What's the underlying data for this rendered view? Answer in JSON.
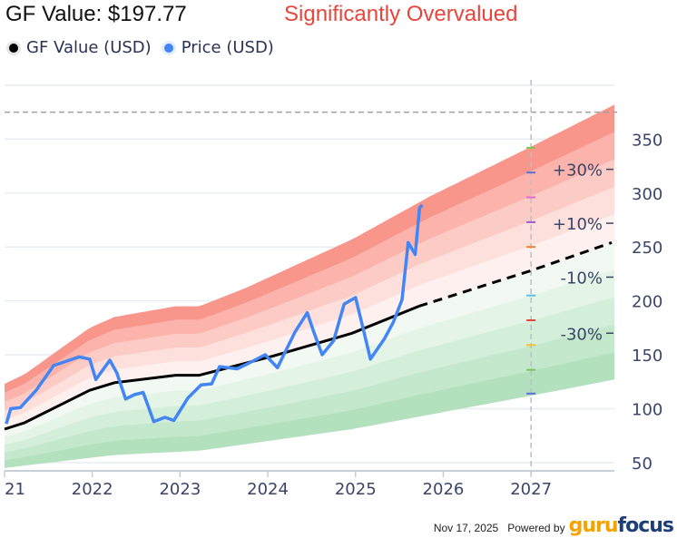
{
  "header": {
    "title": "GF Value: $197.77",
    "verdict": "Significantly Overvalued",
    "verdict_color": "#e8453c"
  },
  "legend": [
    {
      "label": "GF Value (USD)",
      "color": "#000000"
    },
    {
      "label": "Price (USD)",
      "color": "#4285f4"
    }
  ],
  "footer": {
    "date": "Nov 17, 2025",
    "powered_by": "Powered by",
    "brand_a": "guru",
    "brand_b": "focus"
  },
  "chart_data": {
    "type": "line",
    "title": "GF Value: $197.77",
    "xlabel": "",
    "ylabel": "",
    "xlim": [
      2021.0,
      2027.95
    ],
    "ylim": [
      44,
      405
    ],
    "x_ticks": [
      "21",
      "2022",
      "2023",
      "2024",
      "2025",
      "2026",
      "2027"
    ],
    "x_tick_values": [
      2021,
      2022,
      2023,
      2024,
      2025,
      2026,
      2027
    ],
    "y_ticks": [
      50,
      100,
      150,
      200,
      250,
      300,
      350
    ],
    "grid": true,
    "reference_line": {
      "value": 375,
      "style": "dashed"
    },
    "today_marker": 2027.0,
    "band_labels": [
      {
        "label": "+30%",
        "value": 322
      },
      {
        "label": "+10%",
        "value": 272
      },
      {
        "label": "-10%",
        "value": 222
      },
      {
        "label": "-30%",
        "value": 170
      }
    ],
    "band_multipliers": [
      1.5,
      1.4,
      1.3,
      1.2,
      1.1,
      1.0,
      0.9,
      0.8,
      0.7,
      0.6,
      0.5
    ],
    "band_tick_markers": [
      {
        "value": 342,
        "color": "#7cc35a"
      },
      {
        "value": 319,
        "color": "#5b6fd6"
      },
      {
        "value": 296,
        "color": "#e06ad0"
      },
      {
        "value": 273,
        "color": "#a05ad0"
      },
      {
        "value": 250,
        "color": "#f08030"
      },
      {
        "value": 205,
        "color": "#5bbde8"
      },
      {
        "value": 182,
        "color": "#e8453c"
      },
      {
        "value": 159,
        "color": "#f5c030"
      },
      {
        "value": 136,
        "color": "#7cc35a"
      },
      {
        "value": 114,
        "color": "#5b6fd6"
      }
    ],
    "series": [
      {
        "name": "GF Value (USD)",
        "color": "#000000",
        "x": [
          2021.0,
          2021.23,
          2021.97,
          2022.25,
          2022.95,
          2023.22,
          2024.07,
          2024.96,
          2025.72
        ],
        "values": [
          81,
          87,
          117,
          124,
          131,
          131,
          149,
          170,
          195
        ]
      },
      {
        "name": "GF Value Projection",
        "color": "#000000",
        "style": "dashed",
        "x": [
          2025.72,
          2027.0,
          2027.92
        ],
        "values": [
          195,
          228,
          254
        ]
      },
      {
        "name": "Band Upper (+50%)",
        "x": [
          2021.0,
          2021.23,
          2021.97,
          2022.25,
          2022.95,
          2023.22,
          2023.75,
          2024.96,
          2025.85,
          2027.0,
          2027.95
        ],
        "values": [
          123,
          132,
          175,
          185,
          195,
          195,
          212,
          257,
          297,
          343,
          382
        ]
      },
      {
        "name": "Band Lower (-50%)",
        "x": [
          2021.0,
          2022.25,
          2023.22,
          2024.96,
          2027.0,
          2027.95
        ],
        "values": [
          45,
          57,
          61,
          81,
          112,
          127
        ]
      },
      {
        "name": "Price (USD)",
        "color": "#4285f4",
        "x": [
          2021.02,
          2021.07,
          2021.18,
          2021.36,
          2021.56,
          2021.85,
          2021.97,
          2022.04,
          2022.2,
          2022.28,
          2022.38,
          2022.48,
          2022.58,
          2022.7,
          2022.83,
          2022.93,
          2023.09,
          2023.24,
          2023.36,
          2023.45,
          2023.65,
          2023.78,
          2023.97,
          2024.11,
          2024.31,
          2024.45,
          2024.52,
          2024.62,
          2024.75,
          2024.87,
          2025.0,
          2025.07,
          2025.17,
          2025.33,
          2025.43,
          2025.53,
          2025.6,
          2025.68,
          2025.73,
          2025.76
        ],
        "values": [
          86,
          100,
          101,
          117,
          140,
          148,
          146,
          127,
          145,
          133,
          109,
          113,
          115,
          88,
          92,
          89,
          110,
          122,
          123,
          139,
          137,
          142,
          150,
          138,
          171,
          189,
          172,
          150,
          163,
          197,
          203,
          180,
          146,
          165,
          180,
          201,
          254,
          243,
          286,
          289
        ]
      }
    ]
  }
}
